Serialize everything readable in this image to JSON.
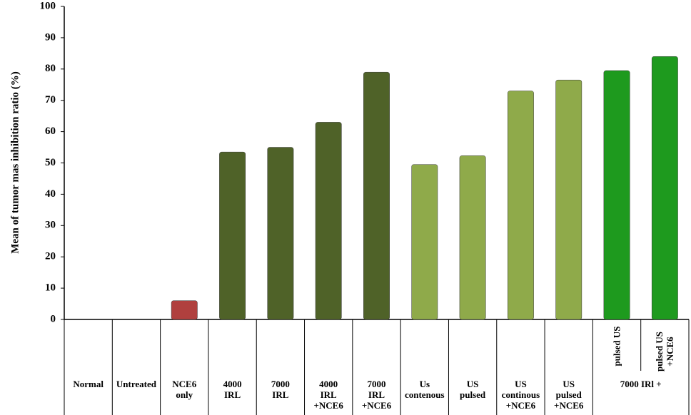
{
  "chart_data": {
    "type": "bar",
    "y_label": "Mean of tumor mas inhibition ratio (%)",
    "categories": [
      "Normal",
      "Untreated",
      "NCE6\nonly",
      "4000\nIRL",
      "7000\nIRL",
      "4000\nIRL\n+NCE6",
      "7000\nIRL\n+NCE6",
      "Us\ncontenous",
      "US\npulsed",
      "US\ncontinous\n+NCE6",
      "US\npulsed\n+NCE6",
      "pulsed US",
      "pulsed US\n+NCE6"
    ],
    "x_group_label": "7000 IRl +",
    "values": [
      0,
      0,
      6,
      53.5,
      55,
      63,
      79,
      49.5,
      52.3,
      73,
      76.5,
      79.5,
      84
    ],
    "colors": [
      "#a6a6a6",
      "#a6a6a6",
      "#b0403e",
      "#4f6228",
      "#4f6228",
      "#4f6228",
      "#4f6228",
      "#8faa4a",
      "#8faa4a",
      "#8faa4a",
      "#8faa4a",
      "#1e9a1e",
      "#1e9a1e"
    ],
    "ylim": [
      0,
      100
    ],
    "yticks": [
      0,
      10,
      20,
      30,
      40,
      50,
      60,
      70,
      80,
      90,
      100
    ],
    "grid": false
  }
}
